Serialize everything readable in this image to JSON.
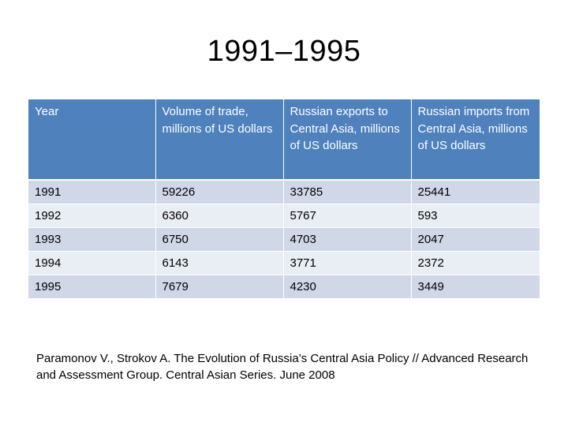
{
  "title": "1991–1995",
  "table": {
    "headers": [
      "Year",
      "Volume of trade, millions of US dollars",
      "Russian exports to Central Asia, millions of US dollars",
      "Russian imports from Central Asia, millions of US dollars"
    ],
    "rows": [
      [
        "1991",
        "59226",
        "33785",
        "25441"
      ],
      [
        "1992",
        "6360",
        "5767",
        "593"
      ],
      [
        "1993",
        "6750",
        "4703",
        "2047"
      ],
      [
        "1994",
        "6143",
        "3771",
        "2372"
      ],
      [
        "1995",
        "7679",
        "4230",
        "3449"
      ]
    ]
  },
  "citation": "Paramonov V., Strokov A. The Evolution of Russia’s Central Asia Policy // Advanced Research and Assessment Group. Central Asian Series. June 2008",
  "colors": {
    "header_bg": "#4f81bd",
    "row_odd_bg": "#d0d8e8",
    "row_even_bg": "#e9edf4"
  }
}
